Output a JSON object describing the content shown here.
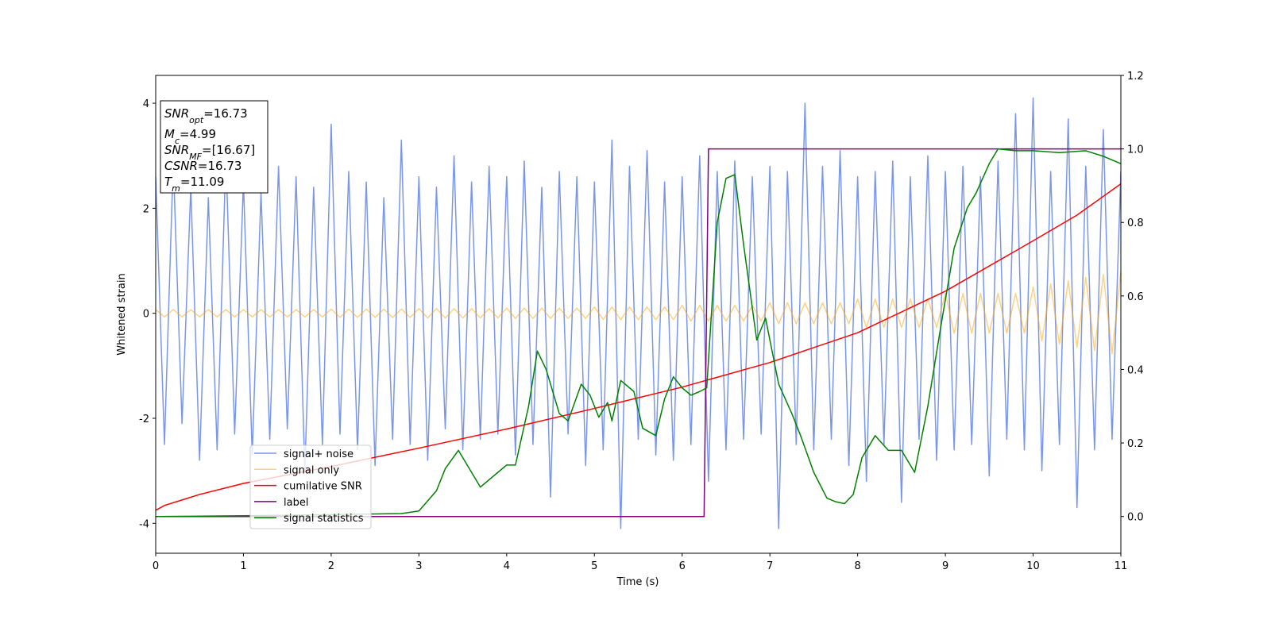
{
  "chart_data": {
    "type": "line",
    "xlabel": "Time (s)",
    "ylabel": "Whitened strain",
    "xlim": [
      0,
      11
    ],
    "xticks": [
      0,
      1,
      2,
      3,
      4,
      5,
      6,
      7,
      8,
      9,
      10,
      11
    ],
    "ylim": [
      -4.57,
      4.53
    ],
    "yticks": [
      -4,
      -2,
      0,
      2,
      4
    ],
    "y2lim": [
      -0.1,
      1.2
    ],
    "y2ticks": [
      {
        "value": 0,
        "label": "0.0"
      },
      0.2,
      0.4,
      0.6,
      0.8,
      {
        "value": 1,
        "label": "1.0"
      },
      1.2
    ],
    "annotation": [
      {
        "symbol": "SNR",
        "sub": "opt",
        "text": "=16.73"
      },
      {
        "symbol": "M",
        "sub": "c",
        "text": "=4.99"
      },
      {
        "symbol": "SNR",
        "sub": "MF",
        "text": "=[16.67]"
      },
      {
        "symbol": "CSNR",
        "text": "=16.73"
      },
      {
        "symbol": "T",
        "sub": "m",
        "text": "=11.09"
      }
    ],
    "x": [
      0,
      0.1,
      0.2,
      0.3,
      0.4,
      0.5,
      0.6,
      0.7,
      0.8,
      0.9,
      1,
      1.1,
      1.2,
      1.3,
      1.4,
      1.5,
      1.6,
      1.7,
      1.8,
      1.9,
      2,
      2.1,
      2.2,
      2.3,
      2.4,
      2.5,
      2.6,
      2.7,
      2.8,
      2.9,
      3,
      3.1,
      3.2,
      3.3,
      3.4,
      3.5,
      3.6,
      3.7,
      3.8,
      3.9,
      4,
      4.1,
      4.2,
      4.3,
      4.4,
      4.5,
      4.6,
      4.7,
      4.8,
      4.9,
      5,
      5.1,
      5.2,
      5.3,
      5.4,
      5.5,
      5.6,
      5.7,
      5.8,
      5.9,
      6,
      6.1,
      6.2,
      6.3,
      6.4,
      6.5,
      6.6,
      6.7,
      6.8,
      6.9,
      7,
      7.1,
      7.2,
      7.3,
      7.4,
      7.5,
      7.6,
      7.7,
      7.8,
      7.9,
      8,
      8.1,
      8.2,
      8.3,
      8.4,
      8.5,
      8.6,
      8.7,
      8.8,
      8.9,
      9,
      9.1,
      9.2,
      9.3,
      9.4,
      9.5,
      9.6,
      9.7,
      9.8,
      9.9,
      10,
      10.1,
      10.2,
      10.3,
      10.4,
      10.5,
      10.6,
      10.7,
      10.8,
      10.9,
      11
    ],
    "series": [
      {
        "name": "signal+ noise",
        "color": "#4169e1",
        "alpha": 0.7,
        "values": [
          2.6,
          -2.5,
          2.9,
          -2.1,
          2.4,
          -2.8,
          2.2,
          -2.6,
          3.0,
          -2.3,
          2.5,
          -2.7,
          2.3,
          -2.4,
          2.8,
          -2.2,
          2.6,
          -3.0,
          2.4,
          -2.5,
          3.6,
          -2.3,
          2.7,
          -2.6,
          2.5,
          -2.9,
          2.2,
          -2.4,
          3.3,
          -2.5,
          2.6,
          -2.8,
          2.4,
          -2.2,
          3.0,
          -2.6,
          2.5,
          -2.4,
          2.8,
          -2.3,
          2.6,
          -2.7,
          2.9,
          -2.5,
          2.4,
          -3.5,
          2.7,
          -2.3,
          2.6,
          -2.9,
          2.5,
          -2.6,
          3.3,
          -4.1,
          2.8,
          -2.4,
          3.1,
          -2.7,
          2.5,
          -2.8,
          2.6,
          -2.5,
          3.0,
          -3.2,
          2.7,
          -2.6,
          2.9,
          -2.4,
          2.6,
          -2.3,
          2.8,
          -4.1,
          2.7,
          -2.5,
          4.0,
          -2.6,
          2.8,
          -2.4,
          3.1,
          -2.9,
          2.6,
          -3.2,
          2.7,
          -2.5,
          2.9,
          -3.6,
          2.6,
          -2.4,
          3.0,
          -2.8,
          2.7,
          -2.6,
          2.8,
          -2.5,
          2.6,
          -3.1,
          2.9,
          -2.4,
          3.8,
          -2.6,
          4.1,
          -3.0,
          2.7,
          -2.5,
          3.7,
          -3.7,
          2.8,
          -2.6,
          3.5,
          -2.4,
          2.7
        ]
      },
      {
        "name": "signal only",
        "color": "#ffa500",
        "alpha": 0.5,
        "values": [
          0.07,
          -0.07,
          0.07,
          -0.07,
          0.07,
          -0.07,
          0.07,
          -0.07,
          0.07,
          -0.07,
          0.07,
          -0.07,
          0.07,
          -0.07,
          0.07,
          -0.07,
          0.07,
          -0.07,
          0.07,
          -0.07,
          0.08,
          -0.08,
          0.08,
          -0.08,
          0.08,
          -0.08,
          0.08,
          -0.08,
          0.08,
          -0.08,
          0.09,
          -0.09,
          0.09,
          -0.09,
          0.09,
          -0.09,
          0.09,
          -0.09,
          0.09,
          -0.09,
          0.1,
          -0.1,
          0.1,
          -0.1,
          0.1,
          -0.1,
          0.1,
          -0.1,
          0.1,
          -0.1,
          0.12,
          -0.12,
          0.12,
          -0.12,
          0.12,
          -0.12,
          0.12,
          -0.12,
          0.12,
          -0.12,
          0.15,
          -0.15,
          0.15,
          -0.15,
          0.15,
          -0.15,
          0.15,
          -0.15,
          0.15,
          -0.15,
          0.2,
          -0.2,
          0.2,
          -0.2,
          0.2,
          -0.2,
          0.2,
          -0.2,
          0.2,
          -0.2,
          0.27,
          -0.27,
          0.27,
          -0.27,
          0.27,
          -0.27,
          0.27,
          -0.27,
          0.27,
          -0.27,
          0.38,
          -0.38,
          0.38,
          -0.38,
          0.38,
          -0.38,
          0.38,
          -0.38,
          0.38,
          -0.38,
          0.5,
          -0.53,
          0.56,
          -0.59,
          0.62,
          -0.65,
          0.68,
          -0.71,
          0.74,
          -0.77,
          0.8
        ]
      },
      {
        "name": "cumilative SNR",
        "color": "#ff0000",
        "alpha": 1,
        "axis": "y2",
        "x": [
          0,
          0.1,
          0.3,
          0.5,
          1,
          2,
          3,
          4,
          5,
          6,
          7,
          8,
          9,
          10,
          10.5,
          11
        ],
        "values": [
          0.017,
          0.03,
          0.045,
          0.06,
          0.09,
          0.136,
          0.186,
          0.238,
          0.294,
          0.352,
          0.419,
          0.5,
          0.613,
          0.75,
          0.82,
          0.905
        ]
      },
      {
        "name": "label",
        "color": "#800080",
        "alpha": 1,
        "axis": "y2",
        "x": [
          0,
          6.25,
          6.3,
          11
        ],
        "values": [
          0,
          0,
          1,
          1
        ]
      },
      {
        "name": "signal statistics",
        "color": "#008000",
        "alpha": 1,
        "axis": "y2",
        "x": [
          0,
          1,
          2,
          2.8,
          3.0,
          3.2,
          3.3,
          3.45,
          3.55,
          3.7,
          3.85,
          4.0,
          4.1,
          4.25,
          4.35,
          4.45,
          4.6,
          4.7,
          4.85,
          4.95,
          5.05,
          5.15,
          5.2,
          5.3,
          5.45,
          5.55,
          5.7,
          5.8,
          5.9,
          6.0,
          6.1,
          6.2,
          6.28,
          6.4,
          6.5,
          6.6,
          6.7,
          6.85,
          6.95,
          7.1,
          7.25,
          7.35,
          7.5,
          7.65,
          7.75,
          7.85,
          7.95,
          8.05,
          8.2,
          8.35,
          8.5,
          8.65,
          8.8,
          8.95,
          9.1,
          9.25,
          9.35,
          9.5,
          9.6,
          9.8,
          10.0,
          10.3,
          10.6,
          10.8,
          11
        ],
        "values": [
          0,
          0.002,
          0.005,
          0.008,
          0.015,
          0.07,
          0.13,
          0.18,
          0.14,
          0.08,
          0.11,
          0.14,
          0.14,
          0.3,
          0.45,
          0.4,
          0.28,
          0.26,
          0.36,
          0.33,
          0.27,
          0.31,
          0.26,
          0.37,
          0.34,
          0.24,
          0.22,
          0.32,
          0.38,
          0.35,
          0.33,
          0.34,
          0.35,
          0.8,
          0.92,
          0.93,
          0.74,
          0.48,
          0.54,
          0.36,
          0.28,
          0.22,
          0.12,
          0.05,
          0.04,
          0.035,
          0.06,
          0.16,
          0.22,
          0.18,
          0.18,
          0.12,
          0.3,
          0.52,
          0.73,
          0.84,
          0.88,
          0.96,
          1.0,
          0.995,
          0.995,
          0.99,
          0.995,
          0.98,
          0.96
        ]
      }
    ]
  }
}
